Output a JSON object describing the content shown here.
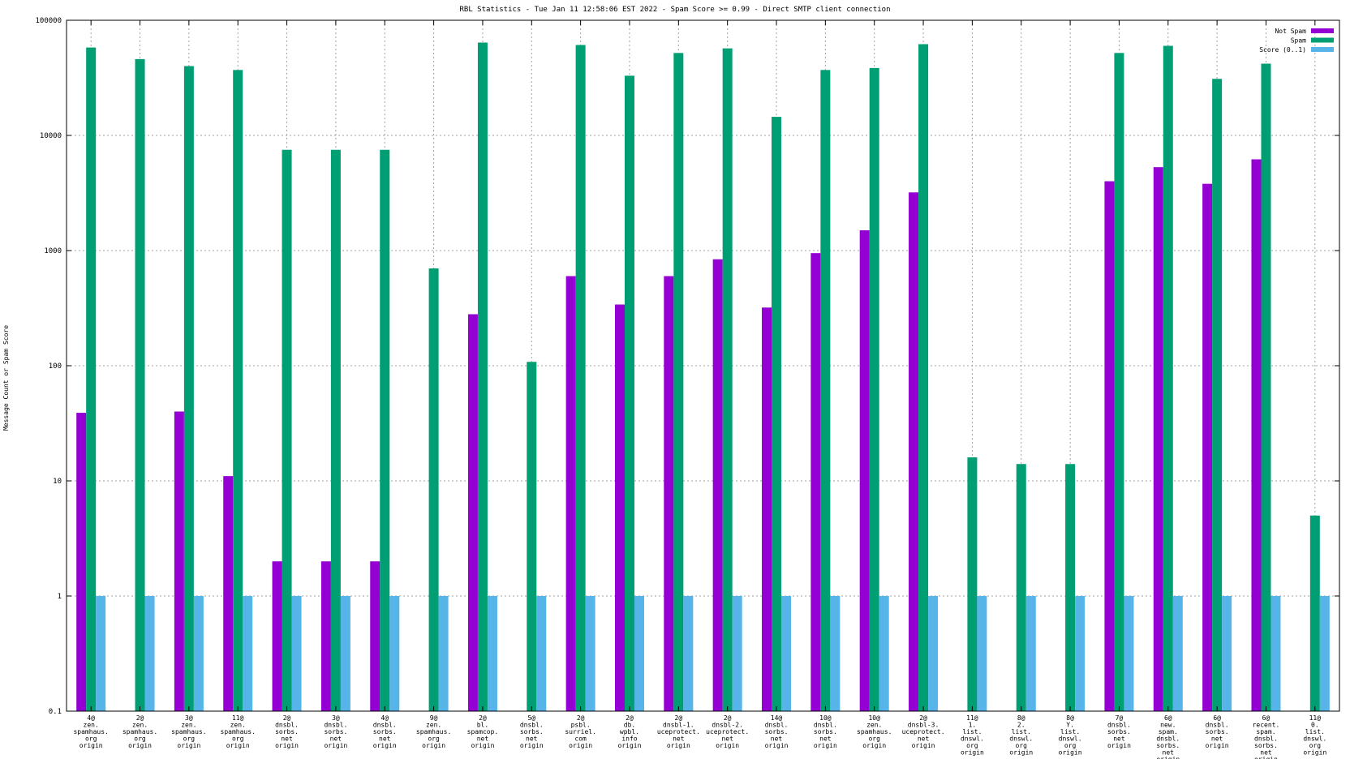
{
  "chart_data": {
    "type": "bar",
    "title": "RBL Statistics - Tue Jan 11 12:58:06 EST 2022 - Spam Score >= 0.99 - Direct SMTP client connection",
    "ylabel": "Message Count or Spam Score",
    "xlabel": "",
    "yscale": "log",
    "ylim": [
      0.1,
      100000
    ],
    "yticks": [
      "0.1",
      "1",
      "10",
      "100",
      "1000",
      "10000",
      "100000"
    ],
    "grid": true,
    "legend_position": "top-right",
    "categories": [
      [
        "4@",
        "zen.",
        "spamhaus.",
        "org",
        "origin"
      ],
      [
        "2@",
        "zen.",
        "spamhaus.",
        "org",
        "origin"
      ],
      [
        "3@",
        "zen.",
        "spamhaus.",
        "org",
        "origin"
      ],
      [
        "11@",
        "zen.",
        "spamhaus.",
        "org",
        "origin"
      ],
      [
        "2@",
        "dnsbl.",
        "sorbs.",
        "net",
        "origin"
      ],
      [
        "3@",
        "dnsbl.",
        "sorbs.",
        "net",
        "origin"
      ],
      [
        "4@",
        "dnsbl.",
        "sorbs.",
        "net",
        "origin"
      ],
      [
        "9@",
        "zen.",
        "spamhaus.",
        "org",
        "origin"
      ],
      [
        "2@",
        "bl.",
        "spamcop.",
        "net",
        "origin"
      ],
      [
        "5@",
        "dnsbl.",
        "sorbs.",
        "net",
        "origin"
      ],
      [
        "2@",
        "psbl.",
        "surriel.",
        "com",
        "origin"
      ],
      [
        "2@",
        "db.",
        "wpbl.",
        "info",
        "origin"
      ],
      [
        "2@",
        "dnsbl-1.",
        "uceprotect.",
        "net",
        "origin"
      ],
      [
        "2@",
        "dnsbl-2.",
        "uceprotect.",
        "net",
        "origin"
      ],
      [
        "14@",
        "dnsbl.",
        "sorbs.",
        "net",
        "origin"
      ],
      [
        "10@",
        "dnsbl.",
        "sorbs.",
        "net",
        "origin"
      ],
      [
        "10@",
        "zen.",
        "spamhaus.",
        "org",
        "origin"
      ],
      [
        "2@",
        "dnsbl-3.",
        "uceprotect.",
        "net",
        "origin"
      ],
      [
        "11@",
        "1.",
        "list.",
        "dnswl.",
        "org",
        "origin"
      ],
      [
        "8@",
        "2.",
        "list.",
        "dnswl.",
        "org",
        "origin"
      ],
      [
        "8@",
        "Y.",
        "list.",
        "dnswl.",
        "org",
        "origin"
      ],
      [
        "7@",
        "dnsbl.",
        "sorbs.",
        "net",
        "origin"
      ],
      [
        "6@",
        "new.",
        "spam.",
        "dnsbl.",
        "sorbs.",
        "net",
        "origin"
      ],
      [
        "6@",
        "dnsbl.",
        "sorbs.",
        "net",
        "origin"
      ],
      [
        "6@",
        "recent.",
        "spam.",
        "dnsbl.",
        "sorbs.",
        "net",
        "origin"
      ],
      [
        "11@",
        "0.",
        "list.",
        "dnswl.",
        "org",
        "origin"
      ]
    ],
    "series": [
      {
        "name": "Not Spam",
        "color": "#9400d3",
        "values": [
          39,
          null,
          40,
          11,
          2,
          2,
          2,
          null,
          280,
          null,
          600,
          340,
          600,
          840,
          320,
          950,
          1500,
          3200,
          null,
          null,
          null,
          4000,
          5300,
          3800,
          6200,
          null
        ]
      },
      {
        "name": "Spam",
        "color": "#009e73",
        "values": [
          58000,
          46000,
          40000,
          37000,
          7500,
          7500,
          7500,
          700,
          64000,
          108,
          61000,
          33000,
          52000,
          57000,
          14500,
          37000,
          38500,
          62000,
          16,
          14,
          14,
          52000,
          60000,
          31000,
          42000,
          5
        ]
      },
      {
        "name": "Score (0..1)",
        "color": "#56b4e9",
        "values": [
          1,
          1,
          1,
          1,
          1,
          1,
          1,
          1,
          1,
          1,
          1,
          1,
          1,
          1,
          1,
          1,
          1,
          1,
          1,
          1,
          1,
          1,
          1,
          1,
          1,
          1
        ]
      }
    ]
  }
}
